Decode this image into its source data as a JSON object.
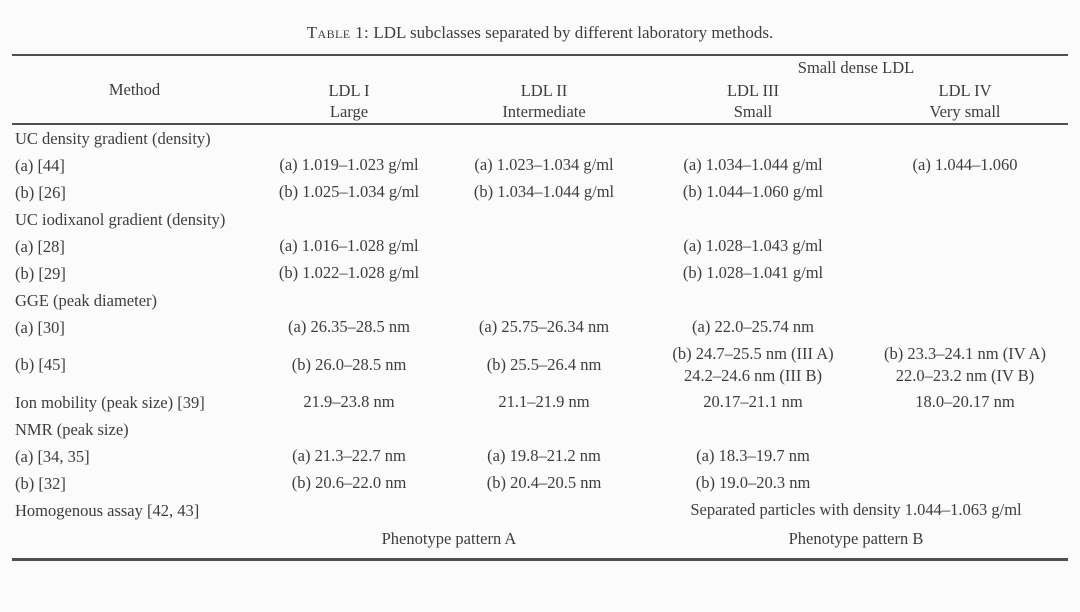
{
  "title": {
    "label": "Table 1:",
    "text": " LDL subclasses separated by different laboratory methods."
  },
  "table": {
    "method_header": "Method",
    "group_header": "Small dense LDL",
    "columns": [
      {
        "name": "LDL I",
        "sub": "Large"
      },
      {
        "name": "LDL II",
        "sub": "Intermediate"
      },
      {
        "name": "LDL III",
        "sub": "Small"
      },
      {
        "name": "LDL IV",
        "sub": "Very small"
      }
    ],
    "rows": [
      {
        "method": "UC density gradient (density)",
        "cells": [
          "",
          "",
          "",
          ""
        ]
      },
      {
        "method": "(a) [44]",
        "cells": [
          "(a) 1.019–1.023 g/ml",
          "(a) 1.023–1.034 g/ml",
          "(a) 1.034–1.044 g/ml",
          "(a) 1.044–1.060"
        ]
      },
      {
        "method": "(b) [26]",
        "cells": [
          "(b) 1.025–1.034 g/ml",
          "(b) 1.034–1.044 g/ml",
          "(b) 1.044–1.060 g/ml",
          ""
        ]
      },
      {
        "method": "UC iodixanol gradient (density)",
        "cells": [
          "",
          "",
          "",
          ""
        ]
      },
      {
        "method": "(a) [28]",
        "cells": [
          "(a) 1.016–1.028 g/ml",
          "",
          "(a) 1.028–1.043 g/ml",
          ""
        ]
      },
      {
        "method": "(b) [29]",
        "cells": [
          "(b) 1.022–1.028 g/ml",
          "",
          "(b) 1.028–1.041 g/ml",
          ""
        ]
      },
      {
        "method": "GGE (peak diameter)",
        "cells": [
          "",
          "",
          "",
          ""
        ]
      },
      {
        "method": "(a) [30]",
        "cells": [
          "(a) 26.35–28.5 nm",
          "(a) 25.75–26.34 nm",
          "(a) 22.0–25.74 nm",
          ""
        ]
      },
      {
        "method": "(b) [45]",
        "cells": [
          "(b) 26.0–28.5 nm",
          "(b) 25.5–26.4 nm",
          "(b) 24.7–25.5 nm (III A)\n24.2–24.6 nm (III B)",
          "(b) 23.3–24.1 nm (IV A)\n22.0–23.2 nm (IV B)"
        ]
      },
      {
        "method": "Ion mobility (peak size) [39]",
        "cells": [
          "21.9–23.8 nm",
          "21.1–21.9 nm",
          "20.17–21.1 nm",
          "18.0–20.17 nm"
        ]
      },
      {
        "method": "NMR (peak size)",
        "cells": [
          "",
          "",
          "",
          ""
        ]
      },
      {
        "method": "(a) [34, 35]",
        "cells": [
          "(a) 21.3–22.7 nm",
          "(a) 19.8–21.2 nm",
          "(a) 18.3–19.7 nm",
          ""
        ]
      },
      {
        "method": "(b) [32]",
        "cells": [
          "(b) 20.6–22.0 nm",
          "(b) 20.4–20.5 nm",
          "(b) 19.0–20.3 nm",
          ""
        ]
      },
      {
        "method": "Homogenous assay [42, 43]",
        "span_right": "Separated particles with density 1.044–1.063 g/ml"
      },
      {
        "span_left": "Phenotype pattern A",
        "span_right": "Phenotype pattern B"
      }
    ]
  }
}
